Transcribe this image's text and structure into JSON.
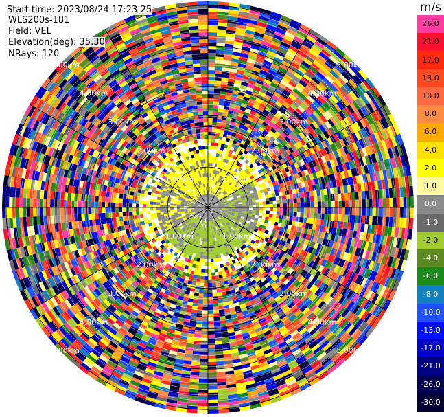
{
  "header": {
    "start_time": "Start time: 2023/08/24 17:23:25",
    "instrument": "WLS200s-181",
    "field": "Field: VEL",
    "elevation": "Elevation(deg): 35.30",
    "nrays": "NRays: 120"
  },
  "colorbar": {
    "unit": "m/s",
    "levels": [
      {
        "label": "26.0",
        "color": "#ff3aa0"
      },
      {
        "label": "21.0",
        "color": "#ff1030"
      },
      {
        "label": "17.0",
        "color": "#ff2a10"
      },
      {
        "label": "13.0",
        "color": "#ff4a20"
      },
      {
        "label": "10.0",
        "color": "#ff6a40"
      },
      {
        "label": "8.0",
        "color": "#ff8c40"
      },
      {
        "label": "6.0",
        "color": "#ffaa00"
      },
      {
        "label": "4.0",
        "color": "#ffe000"
      },
      {
        "label": "2.0",
        "color": "#ffff00"
      },
      {
        "label": "1.0",
        "color": "#fff8a0"
      },
      {
        "label": "0.0",
        "color": "#8a8a8a"
      },
      {
        "label": "-1.0",
        "color": "#6a6a6a"
      },
      {
        "label": "-2.0",
        "color": "#a0cc30"
      },
      {
        "label": "-4.0",
        "color": "#5a8a20"
      },
      {
        "label": "-6.0",
        "color": "#1a8a1a"
      },
      {
        "label": "-8.0",
        "color": "#1080c0"
      },
      {
        "label": "-10.0",
        "color": "#2050ff"
      },
      {
        "label": "-13.0",
        "color": "#0010ff"
      },
      {
        "label": "-17.0",
        "color": "#0000c8"
      },
      {
        "label": "-21.0",
        "color": "#000080"
      },
      {
        "label": "-26.0",
        "color": "#000050"
      },
      {
        "label": "-30.0",
        "color": "#000030"
      }
    ]
  },
  "chart_data": {
    "type": "heatmap",
    "projection": "polar PPI",
    "field": "VEL",
    "units": "m/s",
    "elevation_deg": 35.3,
    "n_rays": 120,
    "range_ring_labels": [
      "1.00km",
      "2.00km",
      "3.00km",
      "4.00km",
      "5.00km"
    ],
    "range_rings_km": [
      1,
      2,
      3,
      4,
      5
    ],
    "max_range_km": 5.1,
    "inner_region": {
      "within_km": 1.3,
      "dominant_values": [
        "2.0",
        "0.0",
        "-2.0"
      ]
    },
    "outer_region": {
      "beyond_km": 1.7,
      "description_values": "noisy, full colour range -30.0 to 26.0"
    },
    "ray_spokes_deg": [
      0,
      30,
      60,
      90,
      120,
      150,
      180,
      210,
      240,
      270,
      300,
      330
    ]
  }
}
